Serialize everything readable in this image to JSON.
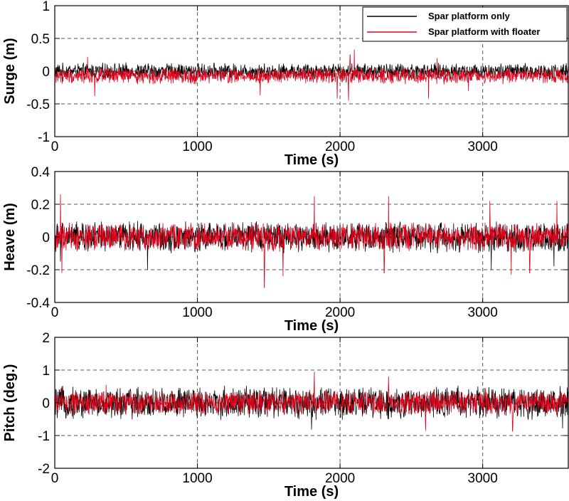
{
  "colors": {
    "series_black": "#000000",
    "series_red": "#e0001a",
    "grid": "#555555"
  },
  "legend": {
    "entries": [
      {
        "label": "Spar platform only",
        "color": "#000000"
      },
      {
        "label": "Spar platform with floater",
        "color": "#e0001a"
      }
    ],
    "placement": "top-right of first panel"
  },
  "chart_data": [
    {
      "type": "line",
      "id": "surge",
      "xlabel": "Time (s)",
      "ylabel": "Surge (m)",
      "xlim": [
        0,
        3600
      ],
      "ylim": [
        -1,
        1
      ],
      "xticks": [
        0,
        1000,
        2000,
        3000
      ],
      "yticks": [
        -1,
        -0.5,
        0,
        0.5,
        1
      ],
      "ytick_labels": [
        "-1",
        "-0.5",
        "0",
        "0.5",
        "1"
      ],
      "grid": true,
      "series": [
        {
          "name": "Spar platform only",
          "color": "#000000",
          "noise_amplitude": 0.1,
          "bias": 0.0,
          "peaks": []
        },
        {
          "name": "Spar platform with floater",
          "color": "#e0001a",
          "noise_amplitude": 0.1,
          "bias": -0.07,
          "peaks": [
            [
              230,
              0.22
            ],
            [
              280,
              -0.38
            ],
            [
              1440,
              -0.37
            ],
            [
              1980,
              -0.42
            ],
            [
              2060,
              -0.45
            ],
            [
              2100,
              0.33
            ],
            [
              2070,
              0.25
            ],
            [
              2620,
              -0.42
            ],
            [
              2680,
              0.2
            ],
            [
              2900,
              -0.3
            ]
          ]
        }
      ]
    },
    {
      "type": "line",
      "id": "heave",
      "xlabel": "Time (s)",
      "ylabel": "Heave (m)",
      "xlim": [
        0,
        3600
      ],
      "ylim": [
        -0.4,
        0.4
      ],
      "xticks": [
        0,
        1000,
        2000,
        3000
      ],
      "yticks": [
        -0.4,
        -0.2,
        0,
        0.2,
        0.4
      ],
      "ytick_labels": [
        "-0.4",
        "-0.2",
        "0",
        "0.2",
        "0.4"
      ],
      "grid": true,
      "series": [
        {
          "name": "Spar platform only",
          "color": "#000000",
          "noise_amplitude": 0.075,
          "bias": 0.0,
          "peaks": [
            [
              40,
              -0.15
            ],
            [
              650,
              -0.2
            ],
            [
              1600,
              -0.18
            ],
            [
              3060,
              -0.2
            ],
            [
              3500,
              -0.18
            ]
          ]
        },
        {
          "name": "Spar platform with floater",
          "color": "#e0001a",
          "noise_amplitude": 0.07,
          "bias": 0.0,
          "peaks": [
            [
              40,
              0.26
            ],
            [
              50,
              -0.22
            ],
            [
              1470,
              -0.31
            ],
            [
              1600,
              -0.24
            ],
            [
              1820,
              0.25
            ],
            [
              2340,
              0.25
            ],
            [
              2310,
              -0.22
            ],
            [
              3050,
              0.22
            ],
            [
              3200,
              -0.23
            ],
            [
              3330,
              -0.22
            ],
            [
              3520,
              0.22
            ]
          ]
        }
      ]
    },
    {
      "type": "line",
      "id": "pitch",
      "xlabel": "Time (s)",
      "ylabel": "Pitch (deg.)",
      "xlim": [
        0,
        3600
      ],
      "ylim": [
        -2,
        2
      ],
      "xticks": [
        0,
        1000,
        2000,
        3000
      ],
      "yticks": [
        -2,
        -1,
        0,
        1,
        2
      ],
      "ytick_labels": [
        "-2",
        "-1",
        "0",
        "1",
        "2"
      ],
      "grid": true,
      "series": [
        {
          "name": "Spar platform only",
          "color": "#000000",
          "noise_amplitude": 0.4,
          "bias": 0.0,
          "peaks": [
            [
              1800,
              -0.82
            ],
            [
              2600,
              -0.8
            ],
            [
              3560,
              -0.78
            ]
          ]
        },
        {
          "name": "Spar platform with floater",
          "color": "#e0001a",
          "noise_amplitude": 0.3,
          "bias": 0.0,
          "peaks": [
            [
              50,
              0.5
            ],
            [
              360,
              0.55
            ],
            [
              1820,
              0.95
            ],
            [
              2340,
              0.8
            ],
            [
              2600,
              -0.85
            ],
            [
              3020,
              0.45
            ],
            [
              3210,
              -0.87
            ]
          ]
        }
      ]
    }
  ]
}
